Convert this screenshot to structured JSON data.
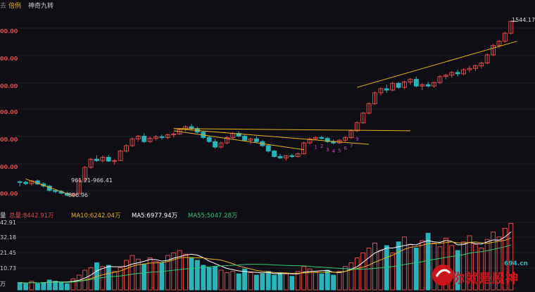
{
  "topbar": {
    "left_label": "去",
    "mode_label": "倍例",
    "indicator_label": "神奇九转"
  },
  "price_axis_labels": [
    "00.00",
    "00.00",
    "00.00",
    "00.00",
    "00.00",
    "00.00",
    "00.00"
  ],
  "price_annotations": {
    "high": "1544.17",
    "range": "961.21-966.41",
    "low": "896.96"
  },
  "nine_turn_numbers": [
    "1",
    "2",
    "3",
    "4",
    "5",
    "6",
    "7",
    "9"
  ],
  "volume_header": {
    "label": "量",
    "total": "总量:8442.91万",
    "ma10": "MA10:6242.04万",
    "ma5": "MA5:6977.94万",
    "ma55": "MA55:5047.28万"
  },
  "volume_axis_labels": [
    "42.91",
    "32.18",
    "21.45",
    "10.73",
    "万"
  ],
  "watermark": {
    "brand": "你就是股神",
    "site": "694.cn"
  },
  "colors": {
    "up": "#e04a4a",
    "down": "#2ab3b8",
    "trend": "#e6b21e",
    "ma10": "#e6b21e",
    "ma5": "#ffffff",
    "ma55": "#2ecc71",
    "nine": "#cc44cc"
  },
  "chart_data": {
    "type": "candlestick",
    "candles": [
      [
        952,
        956,
        935,
        950
      ],
      [
        950,
        955,
        940,
        945
      ],
      [
        945,
        958,
        938,
        955
      ],
      [
        955,
        960,
        940,
        944
      ],
      [
        944,
        950,
        930,
        936
      ],
      [
        936,
        940,
        915,
        920
      ],
      [
        920,
        924,
        910,
        916
      ],
      [
        916,
        922,
        905,
        910
      ],
      [
        910,
        915,
        898,
        902
      ],
      [
        902,
        910,
        897,
        908
      ],
      [
        908,
        962,
        905,
        958
      ],
      [
        958,
        1010,
        955,
        1005
      ],
      [
        1005,
        1040,
        1000,
        1035
      ],
      [
        1035,
        1050,
        1025,
        1030
      ],
      [
        1030,
        1048,
        1022,
        1042
      ],
      [
        1042,
        1050,
        1025,
        1028
      ],
      [
        1028,
        1035,
        1015,
        1030
      ],
      [
        1030,
        1070,
        1028,
        1065
      ],
      [
        1065,
        1090,
        1060,
        1085
      ],
      [
        1085,
        1115,
        1080,
        1110
      ],
      [
        1110,
        1125,
        1100,
        1120
      ],
      [
        1120,
        1130,
        1095,
        1100
      ],
      [
        1100,
        1118,
        1095,
        1112
      ],
      [
        1112,
        1125,
        1105,
        1118
      ],
      [
        1118,
        1126,
        1108,
        1115
      ],
      [
        1115,
        1130,
        1110,
        1125
      ],
      [
        1125,
        1135,
        1115,
        1128
      ],
      [
        1128,
        1150,
        1125,
        1145
      ],
      [
        1145,
        1160,
        1138,
        1155
      ],
      [
        1155,
        1165,
        1140,
        1148
      ],
      [
        1148,
        1155,
        1130,
        1135
      ],
      [
        1135,
        1140,
        1110,
        1115
      ],
      [
        1115,
        1122,
        1095,
        1100
      ],
      [
        1100,
        1108,
        1075,
        1080
      ],
      [
        1080,
        1100,
        1075,
        1095
      ],
      [
        1095,
        1120,
        1090,
        1115
      ],
      [
        1115,
        1135,
        1110,
        1130
      ],
      [
        1130,
        1138,
        1115,
        1120
      ],
      [
        1120,
        1128,
        1100,
        1105
      ],
      [
        1105,
        1115,
        1090,
        1110
      ],
      [
        1110,
        1120,
        1095,
        1100
      ],
      [
        1100,
        1105,
        1080,
        1085
      ],
      [
        1085,
        1090,
        1060,
        1065
      ],
      [
        1065,
        1070,
        1040,
        1045
      ],
      [
        1045,
        1055,
        1035,
        1040
      ],
      [
        1040,
        1050,
        1030,
        1048
      ],
      [
        1048,
        1055,
        1040,
        1045
      ],
      [
        1045,
        1060,
        1042,
        1055
      ],
      [
        1055,
        1100,
        1052,
        1095
      ],
      [
        1095,
        1115,
        1090,
        1110
      ],
      [
        1110,
        1120,
        1105,
        1115
      ],
      [
        1115,
        1122,
        1108,
        1112
      ],
      [
        1112,
        1118,
        1095,
        1100
      ],
      [
        1100,
        1108,
        1090,
        1095
      ],
      [
        1095,
        1110,
        1092,
        1105
      ],
      [
        1105,
        1120,
        1100,
        1115
      ],
      [
        1115,
        1145,
        1110,
        1140
      ],
      [
        1140,
        1175,
        1135,
        1170
      ],
      [
        1170,
        1210,
        1165,
        1205
      ],
      [
        1205,
        1245,
        1200,
        1240
      ],
      [
        1240,
        1285,
        1235,
        1280
      ],
      [
        1280,
        1300,
        1270,
        1295
      ],
      [
        1295,
        1310,
        1280,
        1290
      ],
      [
        1290,
        1320,
        1285,
        1315
      ],
      [
        1315,
        1320,
        1295,
        1300
      ],
      [
        1300,
        1325,
        1295,
        1320
      ],
      [
        1320,
        1335,
        1310,
        1330
      ],
      [
        1330,
        1340,
        1300,
        1305
      ],
      [
        1305,
        1315,
        1290,
        1310
      ],
      [
        1310,
        1320,
        1300,
        1305
      ],
      [
        1305,
        1320,
        1298,
        1318
      ],
      [
        1318,
        1345,
        1312,
        1340
      ],
      [
        1340,
        1350,
        1330,
        1345
      ],
      [
        1345,
        1360,
        1335,
        1355
      ],
      [
        1355,
        1365,
        1340,
        1350
      ],
      [
        1350,
        1370,
        1345,
        1365
      ],
      [
        1365,
        1380,
        1355,
        1370
      ],
      [
        1370,
        1385,
        1360,
        1380
      ],
      [
        1380,
        1395,
        1370,
        1390
      ],
      [
        1390,
        1425,
        1385,
        1420
      ],
      [
        1420,
        1460,
        1415,
        1455
      ],
      [
        1455,
        1475,
        1445,
        1470
      ],
      [
        1470,
        1505,
        1465,
        1500
      ],
      [
        1500,
        1546,
        1495,
        1544
      ]
    ],
    "volumes": [
      0.6,
      0.5,
      0.7,
      0.5,
      0.6,
      0.8,
      0.7,
      0.6,
      0.5,
      0.9,
      1.2,
      1.6,
      1.8,
      2.2,
      1.9,
      2.0,
      1.5,
      1.8,
      2.4,
      2.8,
      2.5,
      2.1,
      2.6,
      2.3,
      2.2,
      2.8,
      3.0,
      3.2,
      2.9,
      2.6,
      2.4,
      2.0,
      1.8,
      1.9,
      1.6,
      1.4,
      1.5,
      1.3,
      1.7,
      1.4,
      1.2,
      1.3,
      1.5,
      1.2,
      1.4,
      1.3,
      1.1,
      1.5,
      1.9,
      1.7,
      1.4,
      1.3,
      1.6,
      1.2,
      1.5,
      1.9,
      2.2,
      2.6,
      3.0,
      3.4,
      3.8,
      3.2,
      3.6,
      3.0,
      3.9,
      4.3,
      3.7,
      3.4,
      4.0,
      4.6,
      3.8,
      3.5,
      4.2,
      3.6,
      3.2,
      3.9,
      4.4,
      3.7,
      3.4,
      4.1,
      4.7,
      4.3,
      5.0,
      5.4
    ],
    "ylim": [
      880,
      1560
    ],
    "volume_ylim": [
      0,
      5.6
    ]
  }
}
